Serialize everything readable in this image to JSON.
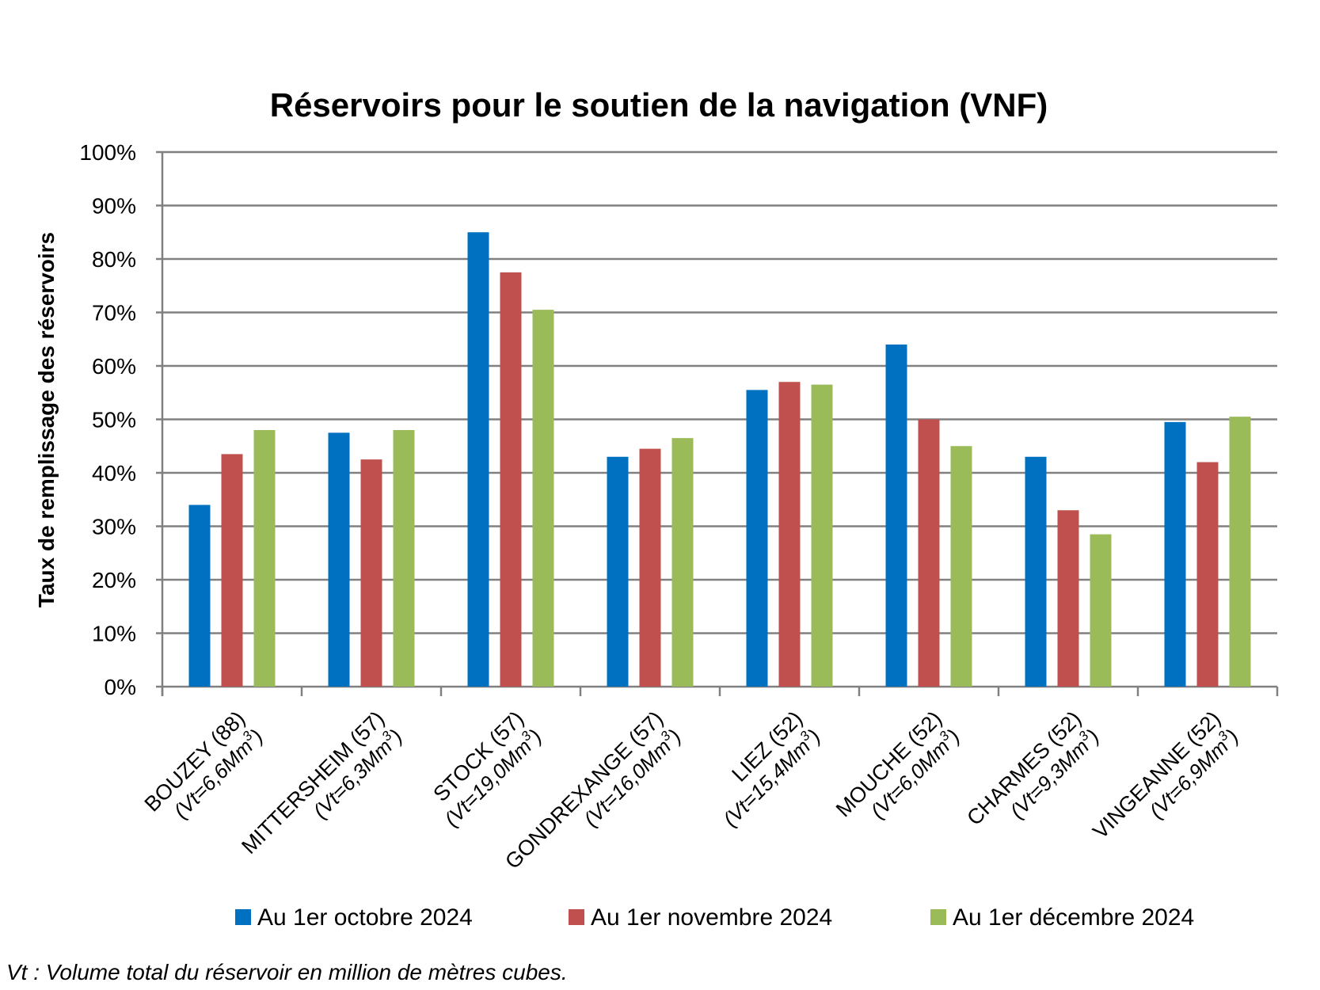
{
  "chart_data": {
    "type": "bar",
    "title": "Réservoirs pour le soutien de la navigation (VNF)",
    "ylabel": "Taux de remplissage des réservoirs",
    "xlabel": "",
    "ylim": [
      0,
      100
    ],
    "y_ticks": [
      "0%",
      "10%",
      "20%",
      "30%",
      "40%",
      "50%",
      "60%",
      "70%",
      "80%",
      "90%",
      "100%"
    ],
    "grid": true,
    "legend_position": "bottom",
    "categories": [
      {
        "name": "BOUZEY (88)",
        "vt_prefix": "(Vt=6,6Mm",
        "vt_sup": "3",
        "vt_suffix": ")"
      },
      {
        "name": "MITTERSHEIM (57)",
        "vt_prefix": "(Vt=6,3Mm",
        "vt_sup": "3",
        "vt_suffix": ")"
      },
      {
        "name": "STOCK (57)",
        "vt_prefix": "(Vt=19,0Mm",
        "vt_sup": "3",
        "vt_suffix": ")"
      },
      {
        "name": "GONDREXANGE (57)",
        "vt_prefix": "(Vt=16,0Mm",
        "vt_sup": "3",
        "vt_suffix": ")"
      },
      {
        "name": "LIEZ (52)",
        "vt_prefix": "(Vt=15,4Mm",
        "vt_sup": "3",
        "vt_suffix": ")"
      },
      {
        "name": "MOUCHE (52)",
        "vt_prefix": "(Vt=6,0Mm",
        "vt_sup": "3",
        "vt_suffix": ")"
      },
      {
        "name": "CHARMES (52)",
        "vt_prefix": "(Vt=9,3Mm",
        "vt_sup": "3",
        "vt_suffix": ")"
      },
      {
        "name": "VINGEANNE (52)",
        "vt_prefix": "(Vt=6,9Mm",
        "vt_sup": "3",
        "vt_suffix": ")"
      }
    ],
    "series": [
      {
        "name": "Au 1er octobre 2024",
        "color": "#0070C0",
        "values": [
          34,
          47.5,
          85,
          43,
          55.5,
          64,
          43,
          49.5
        ]
      },
      {
        "name": "Au 1er novembre 2024",
        "color": "#C0504D",
        "values": [
          43.5,
          42.5,
          77.5,
          44.5,
          57,
          50,
          33,
          42
        ]
      },
      {
        "name": "Au 1er décembre 2024",
        "color": "#9BBB59",
        "values": [
          48,
          48,
          70.5,
          46.5,
          56.5,
          45,
          28.5,
          50.5
        ]
      }
    ],
    "gridline_color": "#808080"
  },
  "footnote": "Vt : Volume total du réservoir en million de mètres cubes."
}
